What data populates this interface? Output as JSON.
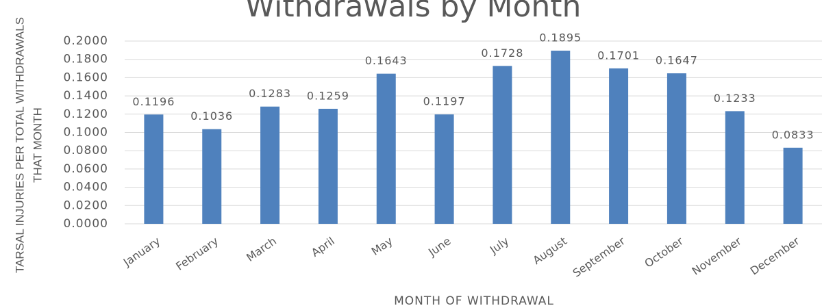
{
  "chart_data": {
    "type": "bar",
    "title": "Withdrawals by Month",
    "ylabel": [
      "TARSAL INJURIES PER TOTAL WITHDRAWALS",
      "THAT MONTH"
    ],
    "xlabel": "MONTH OF WITHDRAWAL",
    "categories": [
      "January",
      "February",
      "March",
      "April",
      "May",
      "June",
      "July",
      "August",
      "September",
      "October",
      "November",
      "December"
    ],
    "values": [
      0.1196,
      0.1036,
      0.1283,
      0.1259,
      0.1643,
      0.1197,
      0.1728,
      0.1895,
      0.1701,
      0.1647,
      0.1233,
      0.0833
    ],
    "color": "#4f81bd",
    "ylim": [
      0,
      0.2
    ],
    "yticks": [
      {
        "value": 0,
        "label": "0.0000"
      },
      {
        "value": 0.02,
        "label": "0.0200"
      },
      {
        "value": 0.04,
        "label": "0.0400"
      },
      {
        "value": 0.06,
        "label": "0.0600"
      },
      {
        "value": 0.08,
        "label": "0.0800"
      },
      {
        "value": 0.1,
        "label": "0.1000"
      },
      {
        "value": 0.12,
        "label": "0.1200"
      },
      {
        "value": 0.14,
        "label": "0.1400"
      },
      {
        "value": 0.16,
        "label": "0.1600"
      },
      {
        "value": 0.18,
        "label": "0.1800"
      },
      {
        "value": 0.2,
        "label": "0.2000"
      }
    ],
    "grid": true
  }
}
